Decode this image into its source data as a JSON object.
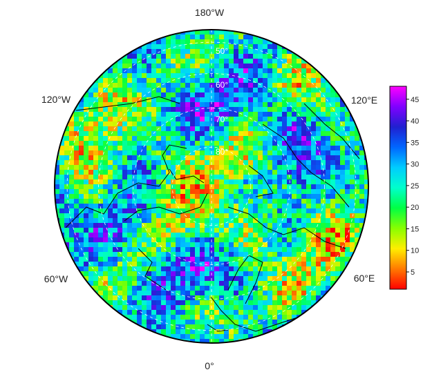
{
  "map": {
    "projection": "north-polar-stereographic",
    "colormap": "rainbow-red-to-magenta",
    "longitude_labels": {
      "top": "180°W",
      "upper_left": "120°W",
      "upper_right": "120°E",
      "lower_left": "60°W",
      "lower_right": "60°E",
      "bottom": "0°"
    },
    "latitude_labels": [
      "50°",
      "60°",
      "70°",
      "80°"
    ]
  },
  "colorbar": {
    "range": [
      1,
      48
    ],
    "ticks": [
      "5",
      "10",
      "15",
      "20",
      "25",
      "30",
      "35",
      "40",
      "45"
    ],
    "colors": [
      "#ff0000",
      "#ff7a00",
      "#ffee00",
      "#88ff00",
      "#00ff44",
      "#00ffcc",
      "#00ccff",
      "#0066ff",
      "#2020d0",
      "#8000ff",
      "#ff00ff"
    ]
  }
}
